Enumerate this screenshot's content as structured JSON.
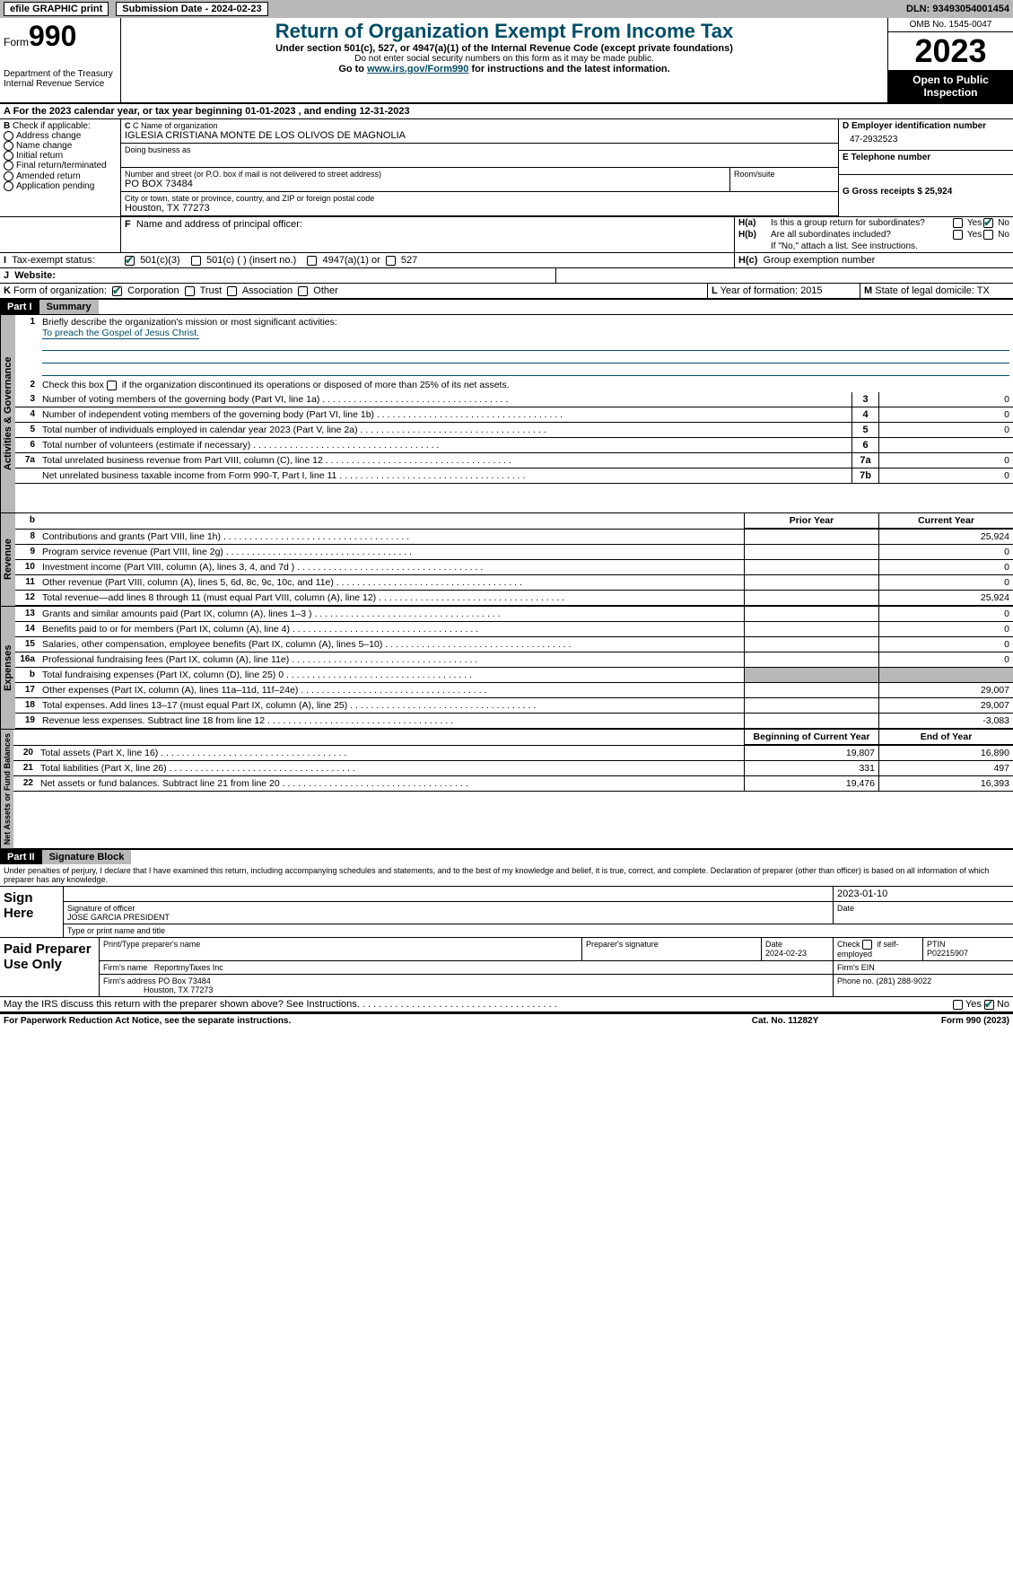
{
  "header": {
    "efile": "efile GRAPHIC print",
    "submission_date_label": "Submission Date - 2024-02-23",
    "dln": "DLN: 93493054001454"
  },
  "form_header": {
    "form_word": "Form",
    "form_num": "990",
    "dept": "Department of the Treasury",
    "irs": "Internal Revenue Service",
    "title": "Return of Organization Exempt From Income Tax",
    "subtitle": "Under section 501(c), 527, or 4947(a)(1) of the Internal Revenue Code (except private foundations)",
    "note1": "Do not enter social security numbers on this form as it may be made public.",
    "note2_pre": "Go to ",
    "note2_link": "www.irs.gov/Form990",
    "note2_post": " for instructions and the latest information.",
    "omb": "OMB No. 1545-0047",
    "year": "2023",
    "inspect": "Open to Public Inspection"
  },
  "line_a": "For the 2023 calendar year, or tax year beginning 01-01-2023   , and ending 12-31-2023",
  "box_b": {
    "label": "Check if applicable:",
    "items": [
      "Address change",
      "Name change",
      "Initial return",
      "Final return/terminated",
      "Amended return",
      "Application pending"
    ]
  },
  "box_c": {
    "name_label": "C Name of organization",
    "name": "IGLESIA CRISTIANA MONTE DE LOS OLIVOS DE MAGNOLIA",
    "dba_label": "Doing business as",
    "addr_label": "Number and street (or P.O. box if mail is not delivered to street address)",
    "addr": "PO BOX 73484",
    "room_label": "Room/suite",
    "city_label": "City or town, state or province, country, and ZIP or foreign postal code",
    "city": "Houston, TX  77273"
  },
  "box_d": {
    "label": "D Employer identification number",
    "value": "47-2932523"
  },
  "box_e": {
    "label": "E Telephone number",
    "value": ""
  },
  "box_g": {
    "label": "G Gross receipts $ 25,924"
  },
  "box_f": {
    "label": "Name and address of principal officer:"
  },
  "box_h": {
    "ha": "Is this a group return for subordinates?",
    "hb": "Are all subordinates included?",
    "hb_note": "If \"No,\" attach a list. See instructions.",
    "hc": "Group exemption number"
  },
  "box_i": {
    "label": "Tax-exempt status:",
    "opts": [
      "501(c)(3)",
      "501(c) (  ) (insert no.)",
      "4947(a)(1) or",
      "527"
    ]
  },
  "box_j": {
    "label": "Website:"
  },
  "box_k": {
    "label": "Form of organization:",
    "opts": [
      "Corporation",
      "Trust",
      "Association",
      "Other"
    ]
  },
  "box_l": {
    "label": "Year of formation: 2015"
  },
  "box_m": {
    "label": "State of legal domicile: TX"
  },
  "part1": {
    "hdr": "Part I",
    "title": "Summary",
    "line1_label": "Briefly describe the organization's mission or most significant activities:",
    "line1_text": "To preach the Gospel of Jesus Christ.",
    "line2": "Check this box      if the organization discontinued its operations or disposed of more than 25% of its net assets.",
    "governance": [
      {
        "n": "3",
        "desc": "Number of voting members of the governing body (Part VI, line 1a)",
        "col": "3",
        "val": "0"
      },
      {
        "n": "4",
        "desc": "Number of independent voting members of the governing body (Part VI, line 1b)",
        "col": "4",
        "val": "0"
      },
      {
        "n": "5",
        "desc": "Total number of individuals employed in calendar year 2023 (Part V, line 2a)",
        "col": "5",
        "val": "0"
      },
      {
        "n": "6",
        "desc": "Total number of volunteers (estimate if necessary)",
        "col": "6",
        "val": ""
      },
      {
        "n": "7a",
        "desc": "Total unrelated business revenue from Part VIII, column (C), line 12",
        "col": "7a",
        "val": "0"
      },
      {
        "n": "",
        "desc": "Net unrelated business taxable income from Form 990-T, Part I, line 11",
        "col": "7b",
        "val": "0"
      }
    ],
    "col_hdrs": {
      "prior": "Prior Year",
      "current": "Current Year"
    },
    "revenue": [
      {
        "n": "8",
        "desc": "Contributions and grants (Part VIII, line 1h)",
        "prior": "",
        "cur": "25,924"
      },
      {
        "n": "9",
        "desc": "Program service revenue (Part VIII, line 2g)",
        "prior": "",
        "cur": "0"
      },
      {
        "n": "10",
        "desc": "Investment income (Part VIII, column (A), lines 3, 4, and 7d )",
        "prior": "",
        "cur": "0"
      },
      {
        "n": "11",
        "desc": "Other revenue (Part VIII, column (A), lines 5, 6d, 8c, 9c, 10c, and 11e)",
        "prior": "",
        "cur": "0"
      },
      {
        "n": "12",
        "desc": "Total revenue—add lines 8 through 11 (must equal Part VIII, column (A), line 12)",
        "prior": "",
        "cur": "25,924"
      }
    ],
    "expenses": [
      {
        "n": "13",
        "desc": "Grants and similar amounts paid (Part IX, column (A), lines 1–3 )",
        "prior": "",
        "cur": "0"
      },
      {
        "n": "14",
        "desc": "Benefits paid to or for members (Part IX, column (A), line 4)",
        "prior": "",
        "cur": "0"
      },
      {
        "n": "15",
        "desc": "Salaries, other compensation, employee benefits (Part IX, column (A), lines 5–10)",
        "prior": "",
        "cur": "0"
      },
      {
        "n": "16a",
        "desc": "Professional fundraising fees (Part IX, column (A), line 11e)",
        "prior": "",
        "cur": "0"
      },
      {
        "n": "b",
        "desc": "Total fundraising expenses (Part IX, column (D), line 25) 0",
        "prior": "grey",
        "cur": "grey"
      },
      {
        "n": "17",
        "desc": "Other expenses (Part IX, column (A), lines 11a–11d, 11f–24e)",
        "prior": "",
        "cur": "29,007"
      },
      {
        "n": "18",
        "desc": "Total expenses. Add lines 13–17 (must equal Part IX, column (A), line 25)",
        "prior": "",
        "cur": "29,007"
      },
      {
        "n": "19",
        "desc": "Revenue less expenses. Subtract line 18 from line 12",
        "prior": "",
        "cur": "-3,083"
      }
    ],
    "net_hdrs": {
      "begin": "Beginning of Current Year",
      "end": "End of Year"
    },
    "net": [
      {
        "n": "20",
        "desc": "Total assets (Part X, line 16)",
        "prior": "19,807",
        "cur": "16,890"
      },
      {
        "n": "21",
        "desc": "Total liabilities (Part X, line 26)",
        "prior": "331",
        "cur": "497"
      },
      {
        "n": "22",
        "desc": "Net assets or fund balances. Subtract line 21 from line 20",
        "prior": "19,476",
        "cur": "16,393"
      }
    ]
  },
  "part2": {
    "hdr": "Part II",
    "title": "Signature Block",
    "decl": "Under penalties of perjury, I declare that I have examined this return, including accompanying schedules and statements, and to the best of my knowledge and belief, it is true, correct, and complete. Declaration of preparer (other than officer) is based on all information of which preparer has any knowledge.",
    "sign_here": "Sign Here",
    "sig_date": "2023-01-10",
    "sig_officer_label": "Signature of officer",
    "sig_date_label": "Date",
    "officer": "JOSE GARCIA  PRESIDENT",
    "officer_label": "Type or print name and title",
    "paid": "Paid Preparer Use Only",
    "prep_name_label": "Print/Type preparer's name",
    "prep_sig_label": "Preparer's signature",
    "prep_date_label": "Date",
    "prep_date": "2024-02-23",
    "check_self": "Check        if self-employed",
    "ptin_label": "PTIN",
    "ptin": "P02215907",
    "firm_name_label": "Firm's name",
    "firm_name": "ReportmyTaxes Inc",
    "firm_ein_label": "Firm's EIN",
    "firm_addr_label": "Firm's address",
    "firm_addr": "PO Box 73484",
    "firm_city": "Houston, TX  77273",
    "phone_label": "Phone no. (281) 288-9022",
    "discuss": "May the IRS discuss this return with the preparer shown above? See Instructions."
  },
  "footer": {
    "paperwork": "For Paperwork Reduction Act Notice, see the separate instructions.",
    "cat": "Cat. No. 11282Y",
    "form": "Form 990 (2023)"
  },
  "vert_labels": {
    "gov": "Activities & Governance",
    "rev": "Revenue",
    "exp": "Expenses",
    "net": "Net Assets or Fund Balances"
  },
  "yesno": {
    "yes": "Yes",
    "no": "No"
  }
}
